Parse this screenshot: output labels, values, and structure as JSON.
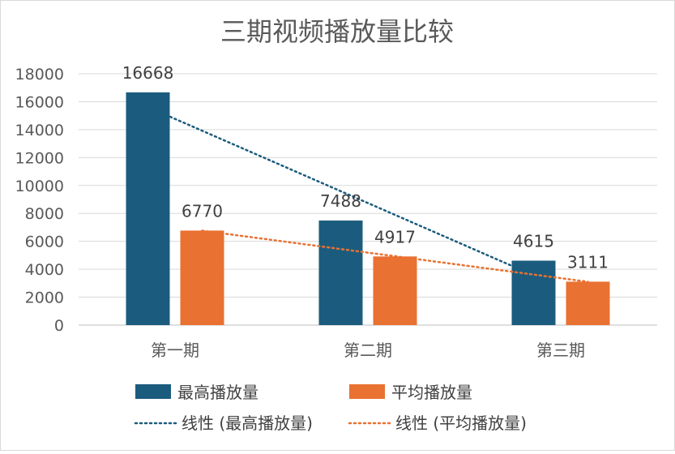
{
  "chart_data": {
    "type": "bar",
    "title": "三期视频播放量比较",
    "categories": [
      "第一期",
      "第二期",
      "第三期"
    ],
    "series": [
      {
        "name": "最高播放量",
        "values": [
          16668,
          7488,
          4615
        ],
        "color": "#1b5c7e"
      },
      {
        "name": "平均播放量",
        "values": [
          6770,
          4917,
          3111
        ],
        "color": "#e97131"
      }
    ],
    "trendlines": [
      {
        "name": "线性 (最高播放量)",
        "series": "最高播放量",
        "color": "#1b5c7e",
        "style": "dotted"
      },
      {
        "name": "线性 (平均播放量)",
        "series": "平均播放量",
        "color": "#e97131",
        "style": "dotted"
      }
    ],
    "ylim": [
      0,
      18000
    ],
    "ytick_step": 2000,
    "xlabel": "",
    "ylabel": "",
    "grid": true,
    "legend_position": "bottom"
  }
}
